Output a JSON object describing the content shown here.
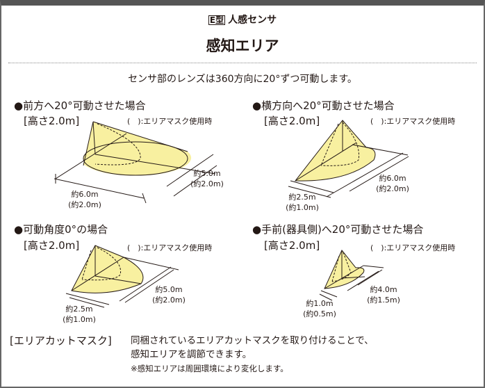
{
  "header": {
    "type_badge": "E型",
    "product": "人感センサ",
    "title": "感知エリア",
    "subtitle": "センサ部のレンズは360方向に20°ずつ可動します。"
  },
  "panels": [
    {
      "title": "●前方へ20°可動させた場合",
      "height": "[高さ2.0m]",
      "mask_note": "(　):エリアマスク使用時",
      "dim_a": "約6.0m",
      "dim_a_mask": "(約2.0m)",
      "dim_b": "約5.0m",
      "dim_b_mask": "(約2.0m)"
    },
    {
      "title": "●横方向へ20°可動させた場合",
      "height": "[高さ2.0m]",
      "mask_note": "(　):エリアマスク使用時",
      "dim_a": "約2.5m",
      "dim_a_mask": "(約1.0m)",
      "dim_b": "約6.0m",
      "dim_b_mask": "(約2.0m)"
    },
    {
      "title": "●可動角度0°の場合",
      "height": "[高さ2.0m]",
      "mask_note": "(　):エリアマスク使用時",
      "dim_a": "約2.5m",
      "dim_a_mask": "(約1.0m)",
      "dim_b": "約5.0m",
      "dim_b_mask": "(約2.0m)"
    },
    {
      "title": "●手前(器具側)へ20°可動させた場合",
      "height": "[高さ2.0m]",
      "mask_note": "(　):エリアマスク使用時",
      "dim_a": "約1.0m",
      "dim_a_mask": "(約0.5m)",
      "dim_b": "約4.0m",
      "dim_b_mask": "(約1.5m)"
    }
  ],
  "footer": {
    "heading": "[エリアカットマスク]",
    "line1": "同梱されているエリアカットマスクを取り付けることで、",
    "line2": "感知エリアを調節できます。",
    "note": "※感知エリアは周囲環境により変化します。"
  },
  "colors": {
    "area_fill": "#f8f0a0",
    "frame": "#555555",
    "text": "#231815"
  }
}
